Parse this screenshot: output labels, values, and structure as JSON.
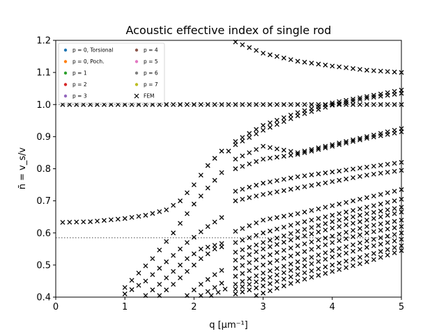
{
  "chart_data": {
    "type": "scatter",
    "title": "Acoustic effective index of single rod",
    "xlabel": "q [μm⁻¹]",
    "ylabel": "n̄ = v_s/v",
    "xlim": [
      0,
      5
    ],
    "ylim": [
      0.4,
      1.2
    ],
    "xticks": [
      "0",
      "1",
      "2",
      "3",
      "4",
      "5"
    ],
    "yticks": [
      "0.4",
      "0.5",
      "0.6",
      "0.7",
      "0.8",
      "0.9",
      "1.0",
      "1.1",
      "1.2"
    ],
    "reference_lines": [
      1.0,
      0.585
    ],
    "legend_position": "top-left",
    "legend": [
      {
        "label": "p = 0, Torsional",
        "color": "#1f77b4",
        "marker": "dot"
      },
      {
        "label": "p = 0, Poch.",
        "color": "#ff7f0e",
        "marker": "dot"
      },
      {
        "label": "p = 1",
        "color": "#2ca02c",
        "marker": "dot"
      },
      {
        "label": "p = 2",
        "color": "#d62728",
        "marker": "dot"
      },
      {
        "label": "p = 3",
        "color": "#9467bd",
        "marker": "dot"
      },
      {
        "label": "p = 4",
        "color": "#8c564b",
        "marker": "dot"
      },
      {
        "label": "p = 5",
        "color": "#e377c2",
        "marker": "dot"
      },
      {
        "label": "p = 6",
        "color": "#7f7f7f",
        "marker": "dot"
      },
      {
        "label": "p = 7",
        "color": "#bcbd22",
        "marker": "dot"
      },
      {
        "label": "FEM",
        "color": "#000000",
        "marker": "x"
      }
    ],
    "fem_branches": [
      {
        "x0": 0.1,
        "x1": 2.5,
        "points": [
          [
            0.1,
            1.0
          ],
          [
            2.5,
            1.0
          ]
        ]
      },
      {
        "x0": 2.6,
        "x1": 5.0,
        "points": [
          [
            2.6,
            1.0
          ],
          [
            5.0,
            1.0
          ]
        ]
      },
      {
        "x0": 2.6,
        "x1": 5.0,
        "points": [
          [
            2.6,
            1.195
          ],
          [
            3.0,
            1.16
          ],
          [
            3.5,
            1.135
          ],
          [
            4.0,
            1.12
          ],
          [
            4.5,
            1.107
          ],
          [
            5.0,
            1.1
          ]
        ]
      },
      {
        "x0": 0.1,
        "x1": 2.5,
        "points": [
          [
            0.1,
            0.633
          ],
          [
            0.5,
            0.635
          ],
          [
            1.0,
            0.645
          ],
          [
            1.3,
            0.655
          ],
          [
            1.6,
            0.672
          ],
          [
            1.8,
            0.7
          ],
          [
            2.0,
            0.75
          ],
          [
            2.2,
            0.81
          ],
          [
            2.4,
            0.855
          ]
        ]
      },
      {
        "x0": 2.6,
        "x1": 5.0,
        "points": [
          [
            2.6,
            0.885
          ],
          [
            3.0,
            0.935
          ],
          [
            3.5,
            0.975
          ],
          [
            4.0,
            1.005
          ],
          [
            4.5,
            1.025
          ],
          [
            5.0,
            1.045
          ]
        ]
      },
      {
        "x0": 2.6,
        "x1": 5.0,
        "points": [
          [
            2.6,
            0.875
          ],
          [
            3.0,
            0.92
          ],
          [
            3.5,
            0.965
          ],
          [
            4.0,
            0.998
          ],
          [
            4.5,
            1.02
          ],
          [
            5.0,
            1.035
          ]
        ]
      },
      {
        "x0": 1.0,
        "x1": 2.45,
        "points": [
          [
            1.0,
            0.43
          ],
          [
            1.4,
            0.52
          ],
          [
            1.7,
            0.6
          ],
          [
            2.0,
            0.69
          ],
          [
            2.2,
            0.74
          ],
          [
            2.45,
            0.8
          ]
        ]
      },
      {
        "x0": 2.6,
        "x1": 5.0,
        "points": [
          [
            2.6,
            0.83
          ],
          [
            3.0,
            0.87
          ],
          [
            3.5,
            0.85
          ],
          [
            4.0,
            0.875
          ],
          [
            4.5,
            0.9
          ],
          [
            5.0,
            0.925
          ]
        ]
      },
      {
        "x0": 2.6,
        "x1": 5.0,
        "points": [
          [
            2.6,
            0.8
          ],
          [
            3.0,
            0.83
          ],
          [
            3.5,
            0.845
          ],
          [
            4.0,
            0.87
          ],
          [
            4.5,
            0.895
          ],
          [
            5.0,
            0.915
          ]
        ]
      },
      {
        "x0": 1.0,
        "x1": 2.45,
        "points": [
          [
            1.0,
            0.41
          ],
          [
            1.3,
            0.45
          ],
          [
            1.6,
            0.51
          ],
          [
            1.9,
            0.57
          ],
          [
            2.2,
            0.62
          ],
          [
            2.45,
            0.655
          ]
        ]
      },
      {
        "x0": 2.6,
        "x1": 5.0,
        "points": [
          [
            2.6,
            0.73
          ],
          [
            3.0,
            0.755
          ],
          [
            3.5,
            0.775
          ],
          [
            4.0,
            0.79
          ],
          [
            4.5,
            0.805
          ],
          [
            5.0,
            0.82
          ]
        ]
      },
      {
        "x0": 2.6,
        "x1": 5.0,
        "points": [
          [
            2.6,
            0.7
          ],
          [
            3.0,
            0.72
          ],
          [
            3.5,
            0.74
          ],
          [
            4.0,
            0.76
          ],
          [
            4.5,
            0.78
          ],
          [
            5.0,
            0.795
          ]
        ]
      },
      {
        "x0": 1.3,
        "x1": 2.45,
        "points": [
          [
            1.3,
            0.405
          ],
          [
            1.5,
            0.44
          ],
          [
            1.7,
            0.48
          ],
          [
            1.9,
            0.52
          ],
          [
            2.1,
            0.55
          ],
          [
            2.45,
            0.57
          ]
        ]
      },
      {
        "x0": 2.6,
        "x1": 5.0,
        "points": [
          [
            2.6,
            0.605
          ],
          [
            3.0,
            0.64
          ],
          [
            3.5,
            0.66
          ],
          [
            4.0,
            0.685
          ],
          [
            4.5,
            0.71
          ],
          [
            5.0,
            0.735
          ]
        ]
      },
      {
        "x0": 2.6,
        "x1": 5.0,
        "points": [
          [
            2.6,
            0.57
          ],
          [
            3.0,
            0.6
          ],
          [
            3.5,
            0.63
          ],
          [
            4.0,
            0.655
          ],
          [
            4.5,
            0.68
          ],
          [
            5.0,
            0.705
          ]
        ]
      },
      {
        "x0": 1.5,
        "x1": 2.45,
        "points": [
          [
            1.5,
            0.405
          ],
          [
            1.7,
            0.44
          ],
          [
            1.9,
            0.48
          ],
          [
            2.1,
            0.52
          ],
          [
            2.3,
            0.55
          ],
          [
            2.45,
            0.56
          ]
        ]
      },
      {
        "x0": 2.6,
        "x1": 5.0,
        "points": [
          [
            2.6,
            0.54
          ],
          [
            3.0,
            0.57
          ],
          [
            3.5,
            0.605
          ],
          [
            4.0,
            0.635
          ],
          [
            4.5,
            0.66
          ],
          [
            5.0,
            0.68
          ]
        ]
      },
      {
        "x0": 2.6,
        "x1": 5.0,
        "points": [
          [
            2.6,
            0.515
          ],
          [
            3.0,
            0.55
          ],
          [
            3.5,
            0.585
          ],
          [
            4.0,
            0.615
          ],
          [
            4.5,
            0.64
          ],
          [
            5.0,
            0.665
          ]
        ]
      },
      {
        "x0": 1.9,
        "x1": 2.45,
        "points": [
          [
            1.9,
            0.405
          ],
          [
            2.1,
            0.44
          ],
          [
            2.3,
            0.47
          ],
          [
            2.45,
            0.49
          ]
        ]
      },
      {
        "x0": 2.6,
        "x1": 5.0,
        "points": [
          [
            2.6,
            0.49
          ],
          [
            3.0,
            0.525
          ],
          [
            3.5,
            0.56
          ],
          [
            4.0,
            0.59
          ],
          [
            4.5,
            0.62
          ],
          [
            5.0,
            0.64
          ]
        ]
      },
      {
        "x0": 2.6,
        "x1": 5.0,
        "points": [
          [
            2.6,
            0.465
          ],
          [
            3.0,
            0.5
          ],
          [
            3.5,
            0.535
          ],
          [
            4.0,
            0.57
          ],
          [
            4.5,
            0.6
          ],
          [
            5.0,
            0.62
          ]
        ]
      },
      {
        "x0": 2.1,
        "x1": 2.45,
        "points": [
          [
            2.1,
            0.405
          ],
          [
            2.3,
            0.43
          ],
          [
            2.45,
            0.45
          ]
        ]
      },
      {
        "x0": 2.6,
        "x1": 5.0,
        "points": [
          [
            2.6,
            0.44
          ],
          [
            3.0,
            0.475
          ],
          [
            3.5,
            0.51
          ],
          [
            4.0,
            0.545
          ],
          [
            4.5,
            0.575
          ],
          [
            5.0,
            0.6
          ]
        ]
      },
      {
        "x0": 2.6,
        "x1": 5.0,
        "points": [
          [
            2.6,
            0.425
          ],
          [
            3.0,
            0.455
          ],
          [
            3.5,
            0.49
          ],
          [
            4.0,
            0.525
          ],
          [
            4.5,
            0.555
          ],
          [
            5.0,
            0.58
          ]
        ]
      },
      {
        "x0": 2.25,
        "x1": 2.45,
        "points": [
          [
            2.25,
            0.405
          ],
          [
            2.45,
            0.425
          ]
        ]
      },
      {
        "x0": 2.6,
        "x1": 5.0,
        "points": [
          [
            2.6,
            0.41
          ],
          [
            3.0,
            0.435
          ],
          [
            3.5,
            0.47
          ],
          [
            4.0,
            0.5
          ],
          [
            4.5,
            0.53
          ],
          [
            5.0,
            0.56
          ]
        ]
      },
      {
        "x0": 2.9,
        "x1": 5.0,
        "points": [
          [
            2.9,
            0.405
          ],
          [
            3.5,
            0.45
          ],
          [
            4.0,
            0.48
          ],
          [
            4.5,
            0.51
          ],
          [
            5.0,
            0.545
          ]
        ]
      }
    ],
    "fem_spacing": 0.1
  }
}
